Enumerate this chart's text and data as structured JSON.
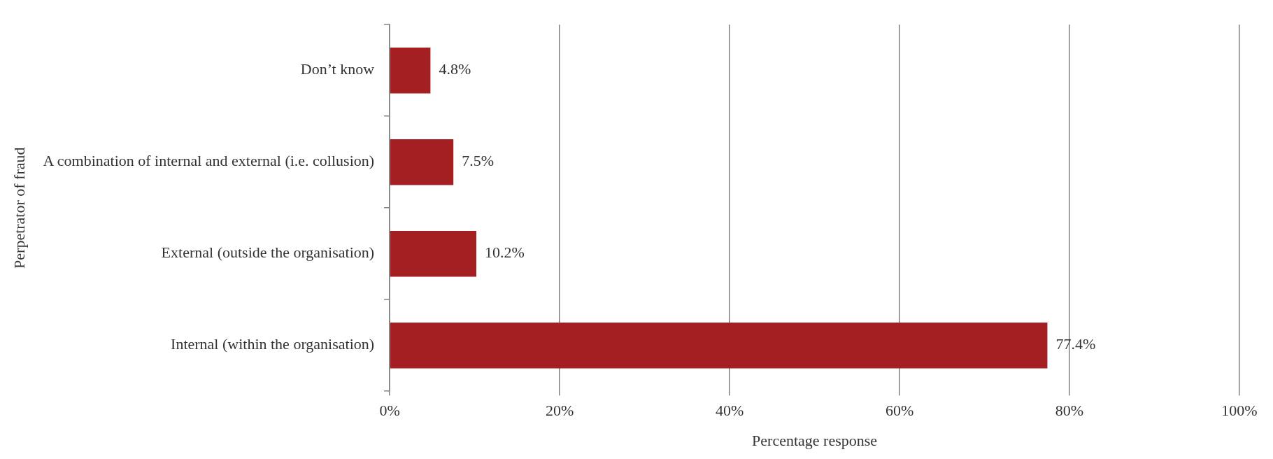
{
  "chart_data": {
    "type": "bar",
    "orientation": "horizontal",
    "categories": [
      "Don’t know",
      "A combination of internal and external (i.e. collusion)",
      "External (outside the organisation)",
      "Internal (within the organisation)"
    ],
    "values": [
      4.8,
      7.5,
      10.2,
      77.4
    ],
    "color": "#a31f22",
    "value_labels": [
      "4.8%",
      "7.5%",
      "10.2%",
      "77.4%"
    ],
    "xlim": [
      0,
      100
    ],
    "xticks": [
      {
        "value": 0,
        "label": "0%"
      },
      {
        "value": 20,
        "label": "20%"
      },
      {
        "value": 40,
        "label": "40%"
      },
      {
        "value": 60,
        "label": "60%"
      },
      {
        "value": 80,
        "label": "80%"
      },
      {
        "value": 100,
        "label": "100%"
      }
    ],
    "xlabel": "Percentage response",
    "ylabel": "Perpetrator of fraud",
    "grid": "x",
    "legend": false
  }
}
